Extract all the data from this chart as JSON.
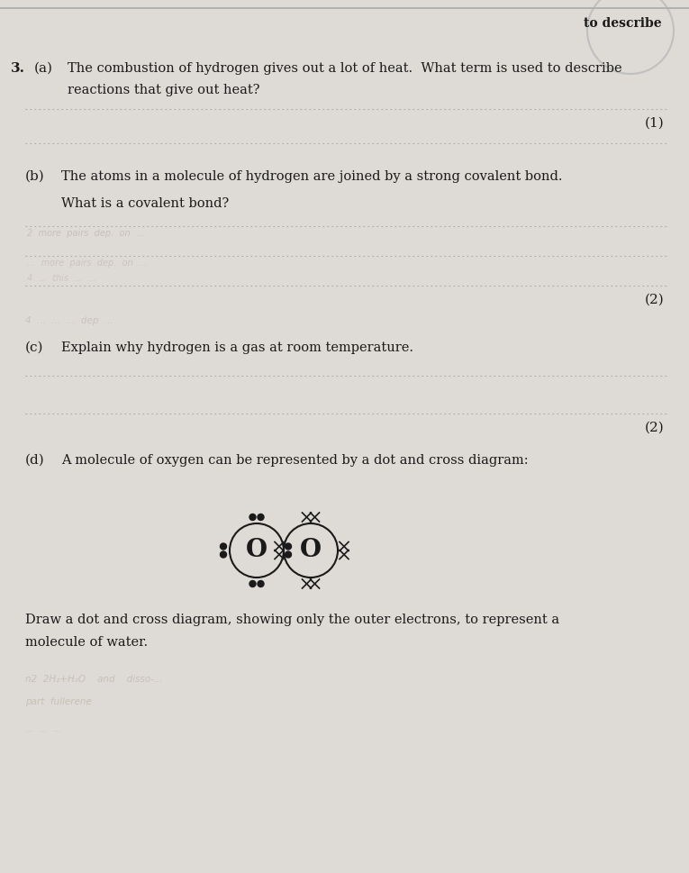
{
  "bg_color": "#dedad5",
  "text_color": "#1a1a1a",
  "dotted_line_color": "#aaaaaa",
  "question_number": "3.",
  "part_a_label": "(a)",
  "part_a_text1": "The combustion of hydrogen gives out a lot of heat.  What term is used to describe",
  "part_a_text2": "reactions that give out heat?",
  "part_a_marks": "(1)",
  "part_b_label": "(b)",
  "part_b_text": "The atoms in a molecule of hydrogen are joined by a strong covalent bond.",
  "part_b_subtext": "What is a covalent bond?",
  "part_b_marks": "(2)",
  "part_c_label": "(c)",
  "part_c_text": "Explain why hydrogen is a gas at room temperature.",
  "part_c_marks": "(2)",
  "part_d_label": "(d)",
  "part_d_text": "A molecule of oxygen can be represented by a dot and cross diagram:",
  "part_d_subtext1": "Draw a dot and cross diagram, showing only the outer electrons, to represent a",
  "part_d_subtext2": "molecule of water.",
  "top_right_text": "to describe"
}
